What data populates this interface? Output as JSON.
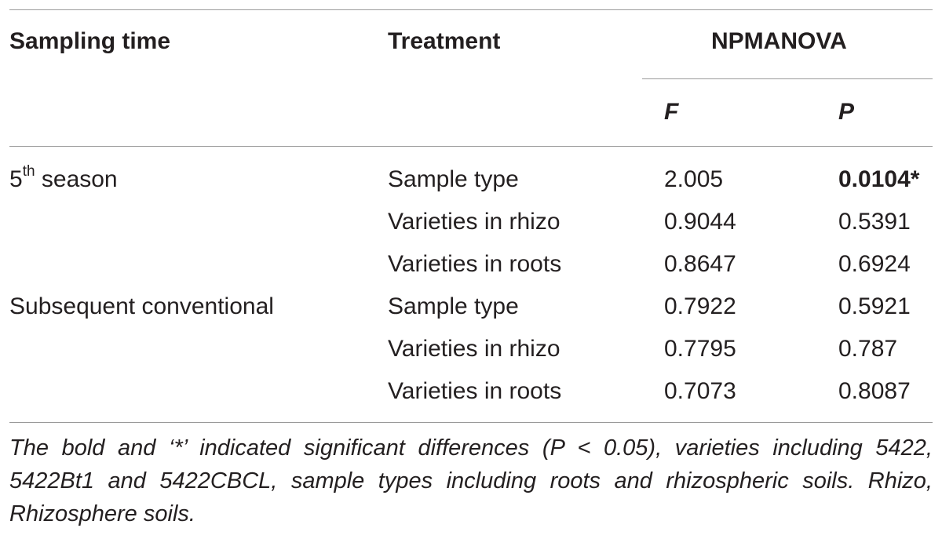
{
  "table": {
    "headers": {
      "sampling_time": "Sampling time",
      "treatment": "Treatment",
      "npmanova": "NPMANOVA",
      "f": "F",
      "p": "P"
    },
    "rows": [
      {
        "sampling_base": "5",
        "sampling_sup": "th",
        "sampling_rest": " season",
        "treatment": "Sample type",
        "f": "2.005",
        "p": "0.0104*",
        "p_bold": true
      },
      {
        "sampling": "",
        "treatment": "Varieties in rhizo",
        "f": "0.9044",
        "p": "0.5391"
      },
      {
        "sampling": "",
        "treatment": "Varieties in roots",
        "f": "0.8647",
        "p": "0.6924"
      },
      {
        "sampling": "Subsequent conventional",
        "treatment": "Sample type",
        "f": "0.7922",
        "p": "0.5921"
      },
      {
        "sampling": "",
        "treatment": "Varieties in rhizo",
        "f": "0.7795",
        "p": "0.787"
      },
      {
        "sampling": "",
        "treatment": "Varieties in roots",
        "f": "0.7073",
        "p": "0.8087"
      }
    ],
    "caption": "The bold and ‘*’ indicated significant differences (P < 0.05), varieties including 5422, 5422Bt1 and 5422CBCL, sample types including roots and rhizospheric soils. Rhizo, Rhizosphere soils."
  }
}
